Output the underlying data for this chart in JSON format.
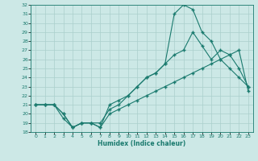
{
  "xlabel": "Humidex (Indice chaleur)",
  "bg_color": "#cce8e6",
  "line_color": "#1a7a6e",
  "grid_color": "#aacfcc",
  "xlim": [
    -0.5,
    23.5
  ],
  "ylim": [
    18,
    32
  ],
  "xticks": [
    0,
    1,
    2,
    3,
    4,
    5,
    6,
    7,
    8,
    9,
    10,
    11,
    12,
    13,
    14,
    15,
    16,
    17,
    18,
    19,
    20,
    21,
    22,
    23
  ],
  "yticks": [
    18,
    19,
    20,
    21,
    22,
    23,
    24,
    25,
    26,
    27,
    28,
    29,
    30,
    31,
    32
  ],
  "line_spike_x": [
    0,
    1,
    2,
    3,
    4,
    5,
    6,
    7,
    8,
    9,
    10,
    11,
    12,
    13,
    14,
    15,
    16,
    17,
    18,
    19,
    20,
    21,
    22,
    23
  ],
  "line_spike_y": [
    21,
    21,
    21,
    19.5,
    18.5,
    19,
    19,
    19,
    20.5,
    21,
    22,
    23,
    24,
    24.5,
    25.5,
    31,
    32,
    31.5,
    29,
    28,
    26,
    25,
    24,
    23
  ],
  "line_upper_x": [
    0,
    1,
    2,
    3,
    4,
    5,
    6,
    7,
    8,
    9,
    10,
    11,
    12,
    13,
    14,
    15,
    16,
    17,
    18,
    19,
    20,
    21,
    22,
    23
  ],
  "line_upper_y": [
    21,
    21,
    21,
    20,
    18.5,
    19,
    19,
    18.5,
    21,
    21.5,
    22,
    23,
    24,
    24.5,
    25.5,
    26.5,
    27,
    29,
    27.5,
    26,
    27,
    26.5,
    25,
    23
  ],
  "line_lower_x": [
    0,
    1,
    2,
    3,
    4,
    5,
    6,
    7,
    8,
    9,
    10,
    11,
    12,
    13,
    14,
    15,
    16,
    17,
    18,
    19,
    20,
    21,
    22,
    23
  ],
  "line_lower_y": [
    21,
    21,
    21,
    20,
    18.5,
    19,
    19,
    18.5,
    20,
    20.5,
    21,
    21.5,
    22,
    22.5,
    23,
    23.5,
    24,
    24.5,
    25,
    25.5,
    26,
    26.5,
    27,
    22.5
  ]
}
